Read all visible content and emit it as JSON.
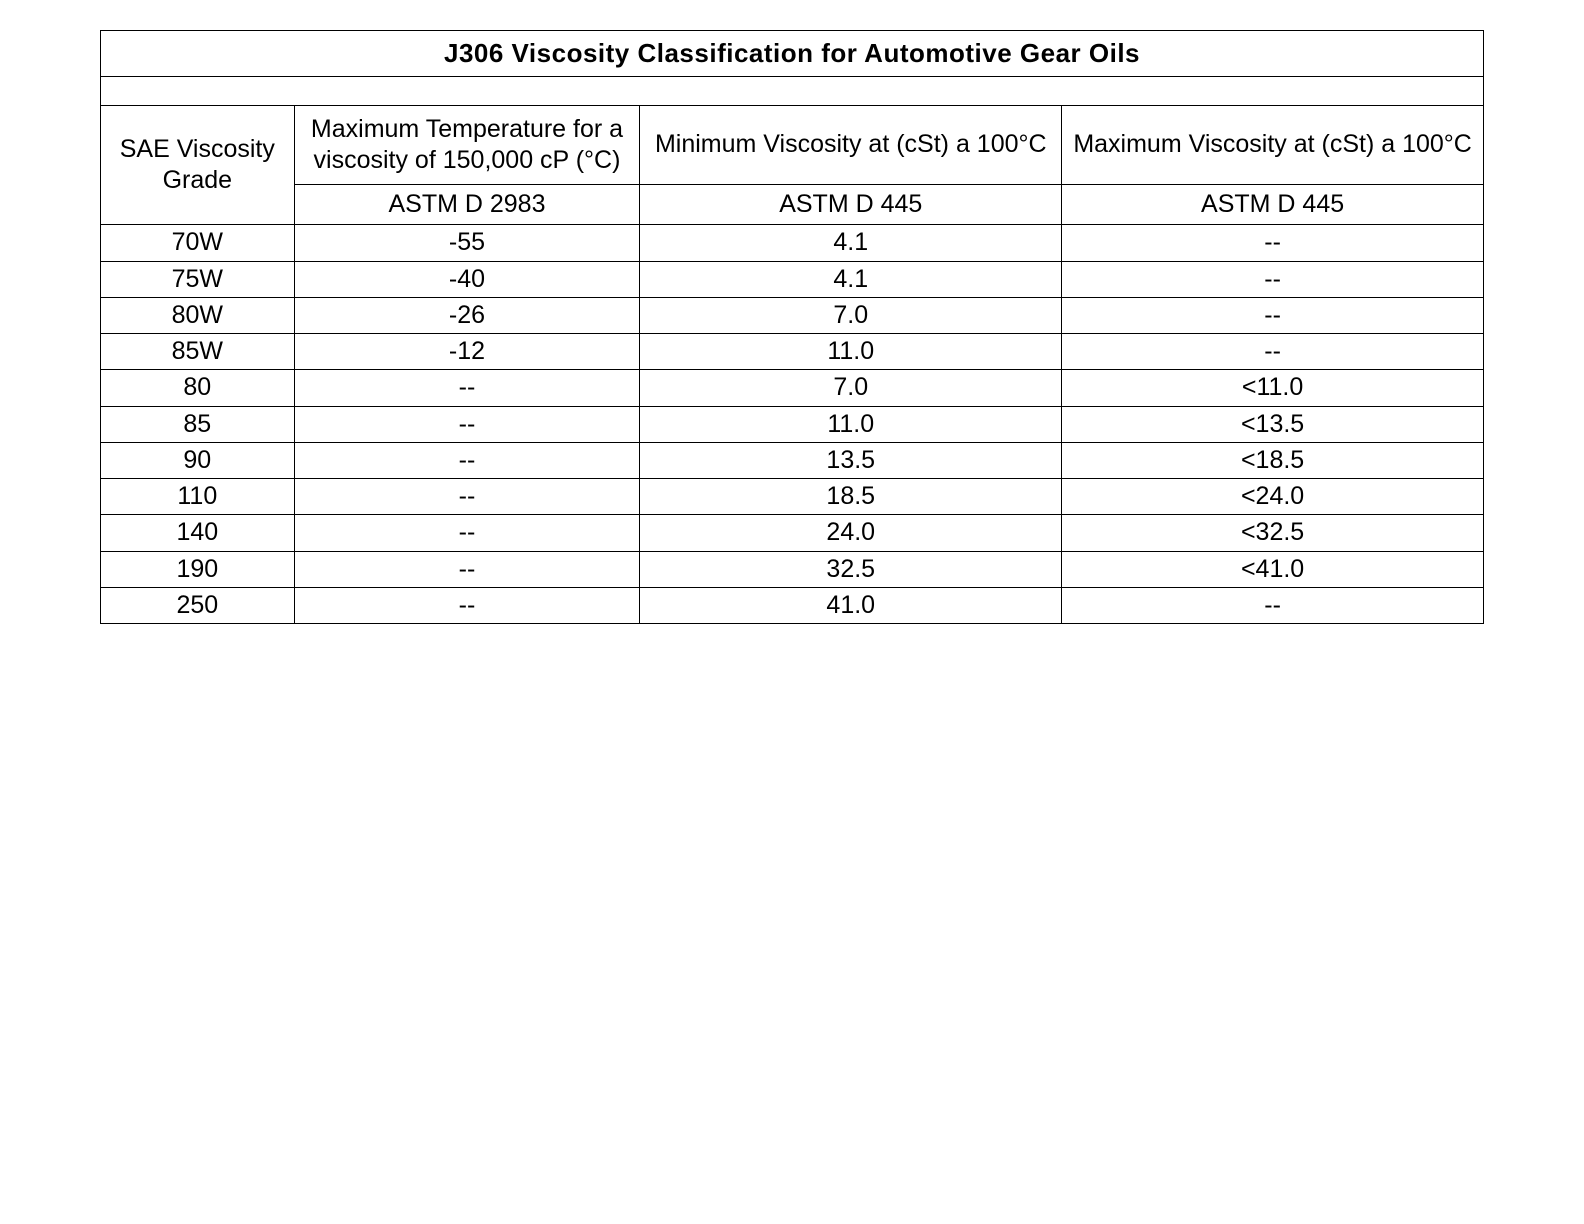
{
  "table": {
    "title": "J306  Viscosity  Classification   for  Automotive   Gear  Oils",
    "background_color": "#ffffff",
    "border_color": "#000000",
    "text_color": "#000000",
    "title_fontsize": 26,
    "cell_fontsize": 25,
    "columns": [
      {
        "header": "SAE Viscosity Grade",
        "subheader": "",
        "width_pct": 14
      },
      {
        "header": "Maximum Temperature for a viscosity of 150,000 cP (°C)",
        "subheader": "ASTM D 2983",
        "width_pct": 25
      },
      {
        "header": "Minimum Viscosity at (cSt) a 100°C",
        "subheader": "ASTM D 445",
        "width_pct": 30.5
      },
      {
        "header": "Maximum Viscosity at (cSt) a 100°C",
        "subheader": "ASTM D 445",
        "width_pct": 30.5
      }
    ],
    "rows": [
      {
        "grade": "70W",
        "max_temp": "-55",
        "min_visc": "4.1",
        "max_visc": "--"
      },
      {
        "grade": "75W",
        "max_temp": "-40",
        "min_visc": "4.1",
        "max_visc": "--"
      },
      {
        "grade": "80W",
        "max_temp": "-26",
        "min_visc": "7.0",
        "max_visc": "--"
      },
      {
        "grade": "85W",
        "max_temp": "-12",
        "min_visc": "11.0",
        "max_visc": "--"
      },
      {
        "grade": "80",
        "max_temp": "--",
        "min_visc": "7.0",
        "max_visc": "<11.0"
      },
      {
        "grade": "85",
        "max_temp": "--",
        "min_visc": "11.0",
        "max_visc": "<13.5"
      },
      {
        "grade": "90",
        "max_temp": "--",
        "min_visc": "13.5",
        "max_visc": "<18.5"
      },
      {
        "grade": "110",
        "max_temp": "--",
        "min_visc": "18.5",
        "max_visc": "<24.0"
      },
      {
        "grade": "140",
        "max_temp": "--",
        "min_visc": "24.0",
        "max_visc": "<32.5"
      },
      {
        "grade": "190",
        "max_temp": "--",
        "min_visc": "32.5",
        "max_visc": "<41.0"
      },
      {
        "grade": "250",
        "max_temp": "--",
        "min_visc": "41.0",
        "max_visc": "--"
      }
    ]
  }
}
